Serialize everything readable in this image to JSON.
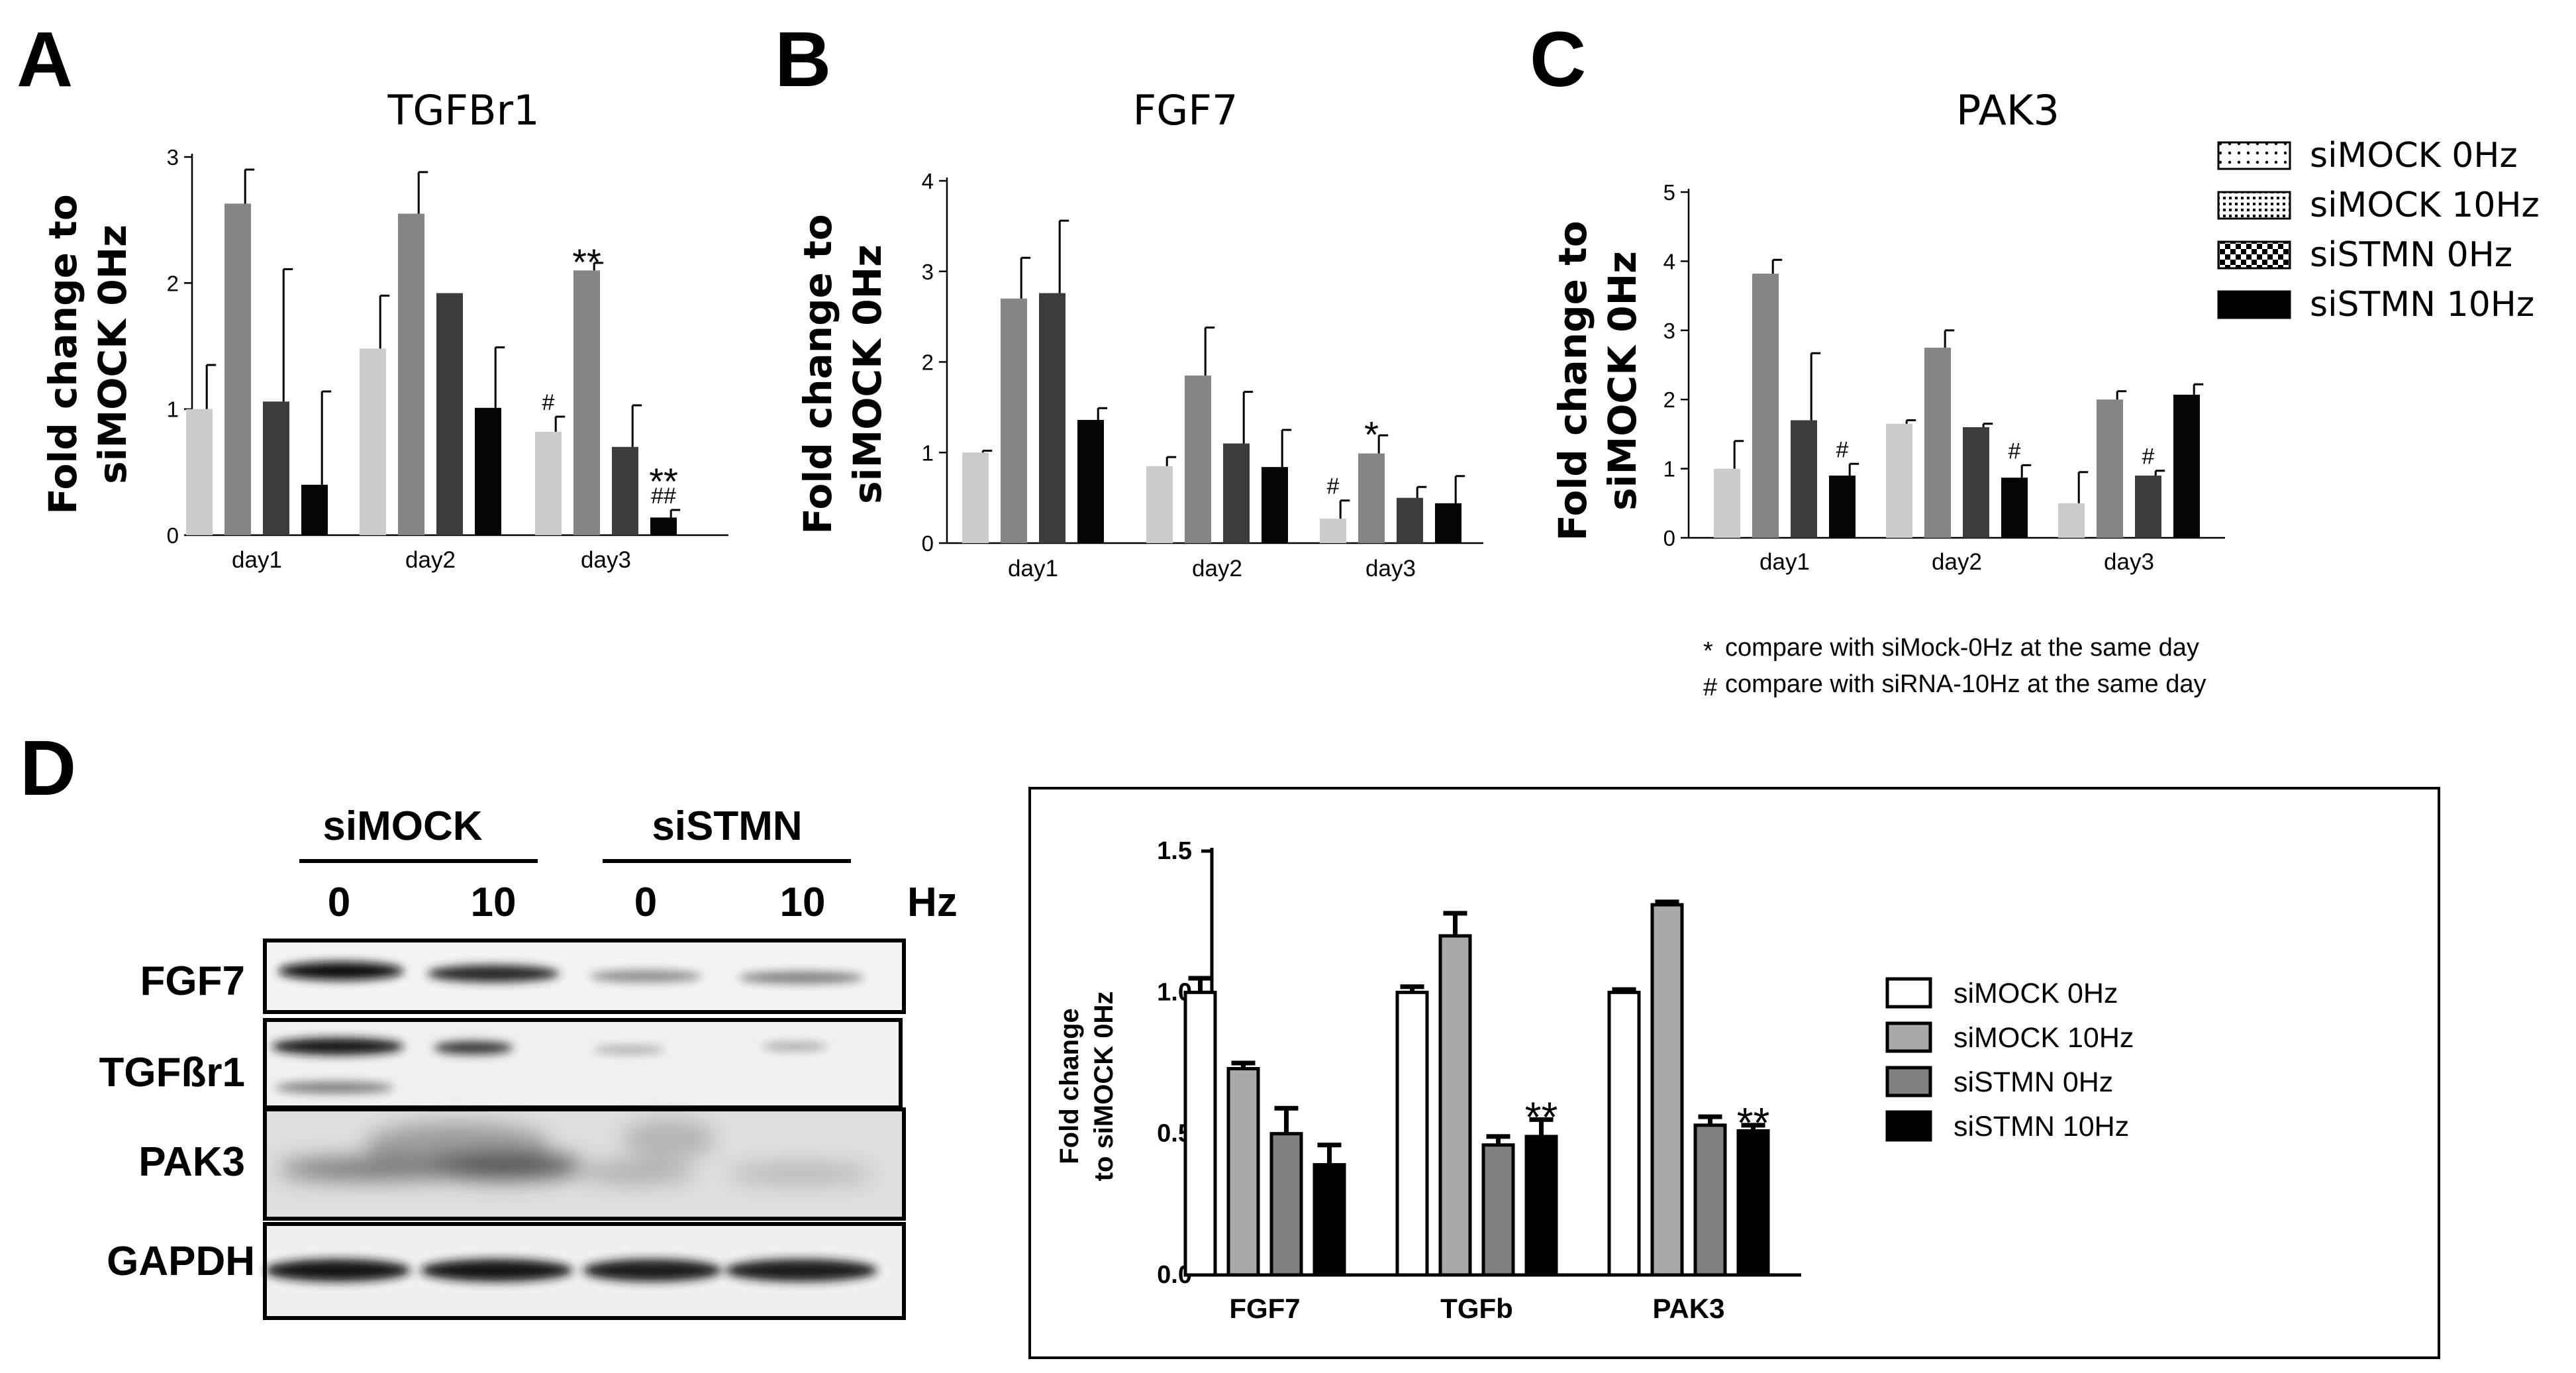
{
  "panel_labels": {
    "a": "A",
    "b": "B",
    "c": "C",
    "d": "D"
  },
  "legend_top": {
    "items": [
      "siMOCK 0Hz",
      "siMOCK 10Hz",
      "siSTMN 0Hz",
      "siSTMN 10Hz"
    ],
    "notes": [
      {
        "symbol": "*",
        "text": "compare with siMock-0Hz at the same day"
      },
      {
        "symbol": "#",
        "text": "compare with siRNA-10Hz at the same day"
      }
    ]
  },
  "colors": {
    "siMOCK_0Hz": "#cccccc",
    "siMOCK_10Hz": "#858585",
    "siSTMN_0Hz": "#3c3c3c",
    "siSTMN_10Hz": "#050505"
  },
  "chart_data": [
    {
      "id": "A",
      "type": "bar",
      "title": "TGFBr1",
      "ylabel": "Fold change to siMOCK 0Hz",
      "categories": [
        "day1",
        "day2",
        "day3"
      ],
      "ylim": [
        0,
        3
      ],
      "yticks": [
        "0",
        "1",
        "2",
        "3"
      ],
      "series": [
        {
          "name": "siMOCK 0Hz",
          "values": [
            1.0,
            1.48,
            0.82
          ],
          "errors": [
            0.35,
            0.42,
            0.12
          ]
        },
        {
          "name": "siMOCK 10Hz",
          "values": [
            2.63,
            2.55,
            2.1
          ],
          "errors": [
            0.27,
            0.33,
            0.06
          ]
        },
        {
          "name": "siSTMN 0Hz",
          "values": [
            1.06,
            1.92,
            0.7
          ],
          "errors": [
            1.05,
            0.0,
            0.33
          ]
        },
        {
          "name": "siSTMN 10Hz",
          "values": [
            0.4,
            1.01,
            0.14
          ],
          "errors": [
            0.74,
            0.48,
            0.06
          ]
        }
      ],
      "annotations": [
        {
          "category": "day3",
          "series": "siMOCK 0Hz",
          "text": "#"
        },
        {
          "category": "day3",
          "series": "siMOCK 10Hz",
          "text": "**"
        },
        {
          "category": "day3",
          "series": "siSTMN 10Hz",
          "text": "##"
        },
        {
          "category": "day3",
          "series": "siSTMN 10Hz",
          "text": "**"
        }
      ]
    },
    {
      "id": "B",
      "type": "bar",
      "title": "FGF7",
      "ylabel": "Fold change to siMOCK 0Hz",
      "categories": [
        "day1",
        "day2",
        "day3"
      ],
      "ylim": [
        0,
        4
      ],
      "yticks": [
        "0",
        "1",
        "2",
        "3",
        "4"
      ],
      "series": [
        {
          "name": "siMOCK 0Hz",
          "values": [
            1.0,
            0.85,
            0.27
          ],
          "errors": [
            0.02,
            0.1,
            0.2
          ]
        },
        {
          "name": "siMOCK 10Hz",
          "values": [
            2.7,
            1.85,
            0.99
          ],
          "errors": [
            0.45,
            0.53,
            0.2
          ]
        },
        {
          "name": "siSTMN 0Hz",
          "values": [
            2.76,
            1.1,
            0.5
          ],
          "errors": [
            0.8,
            0.57,
            0.12
          ]
        },
        {
          "name": "siSTMN 10Hz",
          "values": [
            1.36,
            0.84,
            0.44
          ],
          "errors": [
            0.13,
            0.41,
            0.3
          ]
        }
      ],
      "annotations": [
        {
          "category": "day3",
          "series": "siMOCK 0Hz",
          "text": "#"
        },
        {
          "category": "day3",
          "series": "siMOCK 10Hz",
          "text": "*"
        }
      ]
    },
    {
      "id": "C",
      "type": "bar",
      "title": "PAK3",
      "ylabel": "Fold change to siMOCK 0Hz",
      "categories": [
        "day1",
        "day2",
        "day3"
      ],
      "ylim": [
        0,
        5
      ],
      "yticks": [
        "0",
        "1",
        "2",
        "3",
        "4",
        "5"
      ],
      "series": [
        {
          "name": "siMOCK 0Hz",
          "values": [
            1.0,
            1.65,
            0.5
          ],
          "errors": [
            0.4,
            0.05,
            0.45
          ]
        },
        {
          "name": "siMOCK 10Hz",
          "values": [
            3.82,
            2.75,
            2.0
          ],
          "errors": [
            0.2,
            0.25,
            0.12
          ]
        },
        {
          "name": "siSTMN 0Hz",
          "values": [
            1.7,
            1.6,
            0.9
          ],
          "errors": [
            0.97,
            0.05,
            0.07
          ]
        },
        {
          "name": "siSTMN 10Hz",
          "values": [
            0.9,
            0.87,
            2.07
          ],
          "errors": [
            0.17,
            0.18,
            0.15
          ]
        }
      ],
      "annotations": [
        {
          "category": "day1",
          "series": "siSTMN 10Hz",
          "text": "#"
        },
        {
          "category": "day2",
          "series": "siSTMN 10Hz",
          "text": "#"
        },
        {
          "category": "day3",
          "series": "siSTMN 0Hz",
          "text": "#"
        }
      ]
    },
    {
      "id": "D",
      "type": "bar",
      "ylabel": "Fold change to siMOCK 0Hz",
      "categories": [
        "FGF7",
        "TGFb",
        "PAK3"
      ],
      "ylim": [
        0,
        1.5
      ],
      "yticks": [
        "0.0",
        "0.5",
        "1.0",
        "1.5"
      ],
      "series": [
        {
          "name": "siMOCK 0Hz",
          "values": [
            1.0,
            1.0,
            1.0
          ],
          "errors": [
            0.05,
            0.02,
            0.01
          ]
        },
        {
          "name": "siMOCK 10Hz",
          "values": [
            0.73,
            1.2,
            1.31
          ],
          "errors": [
            0.02,
            0.08,
            0.01
          ]
        },
        {
          "name": "siSTMN 0Hz",
          "values": [
            0.5,
            0.46,
            0.53
          ],
          "errors": [
            0.09,
            0.03,
            0.03
          ]
        },
        {
          "name": "siSTMN 10Hz",
          "values": [
            0.39,
            0.49,
            0.51
          ],
          "errors": [
            0.07,
            0.06,
            0.02
          ]
        }
      ],
      "annotations": [
        {
          "category": "TGFb",
          "series": "siSTMN 10Hz",
          "text": "**"
        },
        {
          "category": "PAK3",
          "series": "siSTMN 10Hz",
          "text": "**"
        }
      ]
    }
  ],
  "western_blot": {
    "group_labels": [
      "siMOCK",
      "siSTMN"
    ],
    "lane_labels": [
      "0",
      "10",
      "0",
      "10"
    ],
    "unit": "Hz",
    "rows": [
      "FGF7",
      "TGFßr1",
      "PAK3",
      "GAPDH"
    ]
  }
}
